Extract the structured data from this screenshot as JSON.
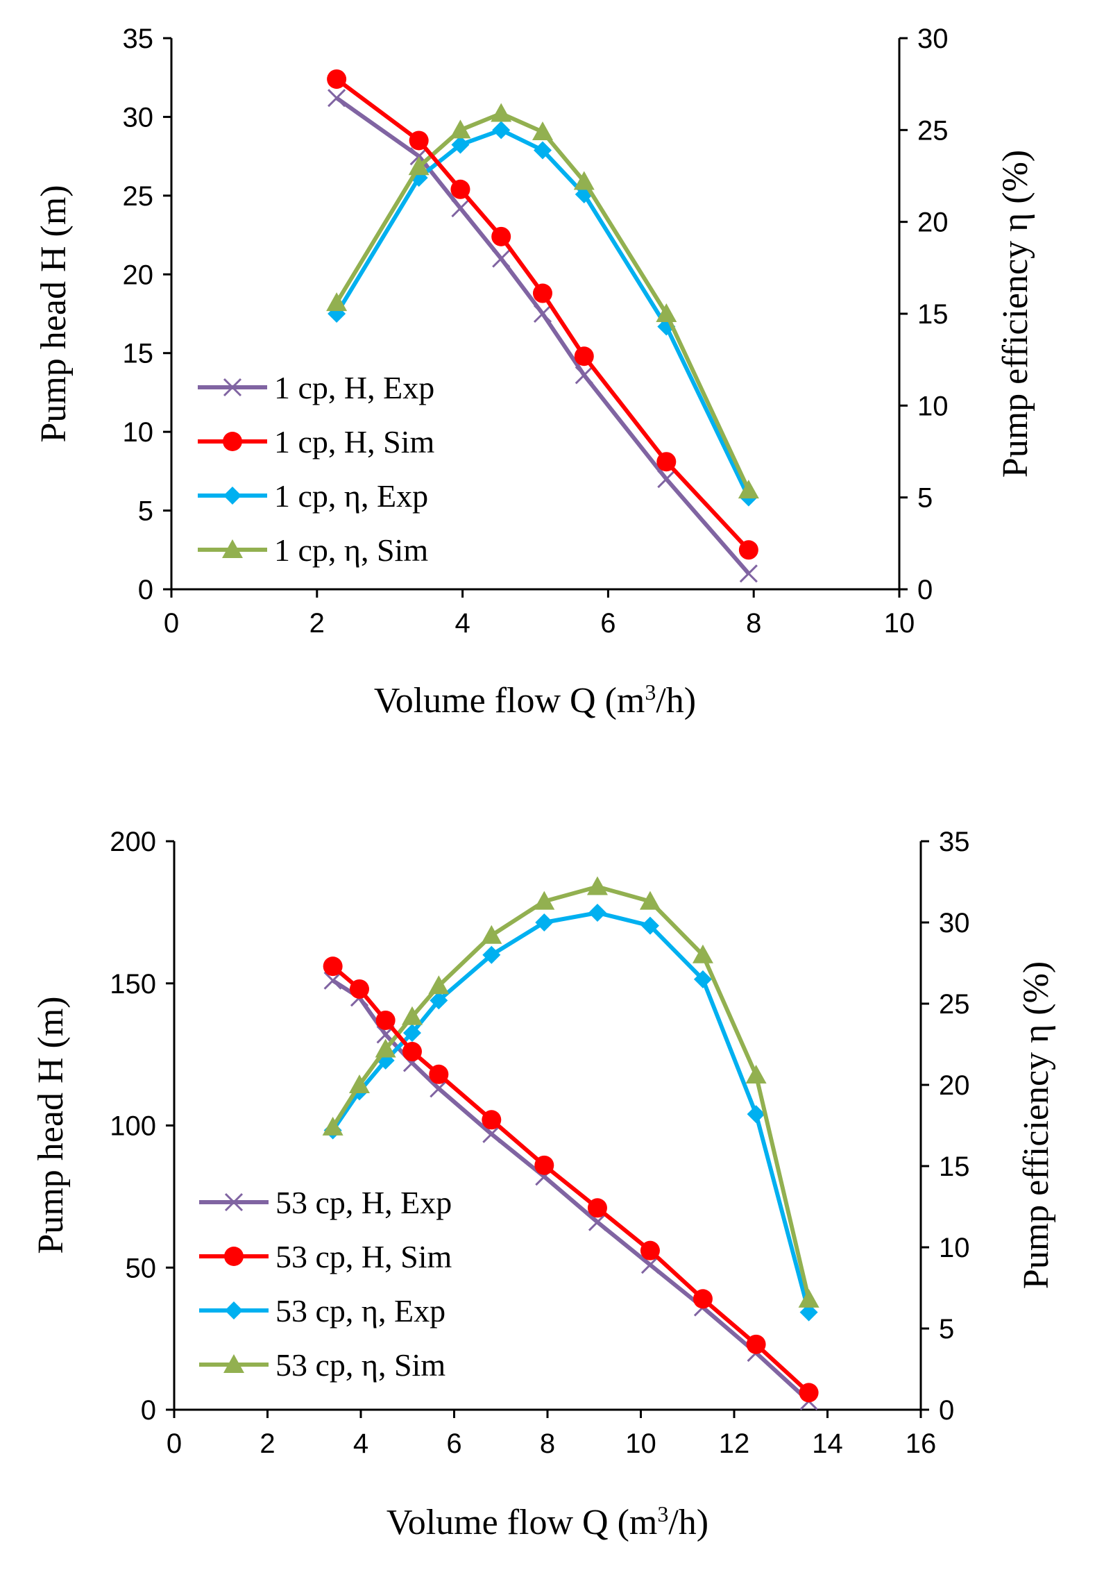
{
  "colors": {
    "h_exp": "#8064a2",
    "h_sim": "#ff0000",
    "eta_exp": "#00b0f0",
    "eta_sim": "#92b050"
  },
  "chart_data": [
    {
      "type": "line",
      "xlabel": "Volume flow Q (m³/h)",
      "xlabel_main": "Volume flow Q (m",
      "xlabel_sup": "3",
      "xlabel_tail": "/h)",
      "ylabel": "Pump head H (m)",
      "y2label": "Pump efficiency η (%)",
      "xlim": [
        0,
        10
      ],
      "ylim": [
        0,
        35
      ],
      "y2lim": [
        0,
        30
      ],
      "xticks": [
        0,
        2,
        4,
        6,
        8,
        10
      ],
      "yticks": [
        0,
        5,
        10,
        15,
        20,
        25,
        30,
        35
      ],
      "y2ticks": [
        0,
        5,
        10,
        15,
        20,
        25,
        30
      ],
      "legend_position": "bottom-left",
      "series": [
        {
          "name": "1 cp, H, Exp",
          "axis": "left",
          "marker": "x",
          "color_key": "h_exp",
          "x": [
            2.27,
            3.4,
            3.97,
            4.53,
            5.1,
            5.67,
            6.8,
            7.93
          ],
          "y": [
            31.2,
            27.5,
            24.2,
            21.0,
            17.5,
            13.6,
            7.0,
            1.0
          ]
        },
        {
          "name": "1 cp, H, Sim",
          "axis": "left",
          "marker": "circle",
          "color_key": "h_sim",
          "x": [
            2.27,
            3.4,
            3.97,
            4.53,
            5.1,
            5.67,
            6.8,
            7.93
          ],
          "y": [
            32.4,
            28.5,
            25.4,
            22.4,
            18.8,
            14.8,
            8.1,
            2.5
          ]
        },
        {
          "name": "1 cp, η, Exp",
          "axis": "right",
          "marker": "diamond",
          "color_key": "eta_exp",
          "x": [
            2.27,
            3.4,
            3.97,
            4.53,
            5.1,
            5.67,
            6.8,
            7.93
          ],
          "y": [
            15.0,
            22.4,
            24.2,
            25.0,
            23.9,
            21.5,
            14.3,
            5.0
          ]
        },
        {
          "name": "1 cp, η, Sim",
          "axis": "right",
          "marker": "triangle",
          "color_key": "eta_sim",
          "x": [
            2.27,
            3.4,
            3.97,
            4.53,
            5.1,
            5.67,
            6.8,
            7.93
          ],
          "y": [
            15.6,
            23.0,
            25.0,
            25.9,
            24.9,
            22.2,
            15.0,
            5.4
          ]
        }
      ]
    },
    {
      "type": "line",
      "xlabel": "Volume flow Q (m³/h)",
      "xlabel_main": "Volume flow Q (m",
      "xlabel_sup": "3",
      "xlabel_tail": "/h)",
      "ylabel": "Pump head H (m)",
      "y2label": "Pump efficiency η (%)",
      "xlim": [
        0,
        16
      ],
      "ylim": [
        0,
        200
      ],
      "y2lim": [
        0,
        35
      ],
      "xticks": [
        0,
        2,
        4,
        6,
        8,
        10,
        12,
        14,
        16
      ],
      "yticks": [
        0,
        50,
        100,
        150,
        200
      ],
      "y2ticks": [
        0,
        5,
        10,
        15,
        20,
        25,
        30,
        35
      ],
      "legend_position": "bottom-left",
      "series": [
        {
          "name": "53 cp, H, Exp",
          "axis": "left",
          "marker": "x",
          "color_key": "h_exp",
          "x": [
            3.4,
            3.97,
            4.53,
            5.1,
            5.67,
            6.8,
            7.93,
            9.07,
            10.2,
            11.33,
            12.47,
            13.6
          ],
          "y": [
            151,
            145,
            132,
            122,
            113,
            97,
            82,
            66,
            51,
            36,
            20,
            3
          ]
        },
        {
          "name": "53 cp, H, Sim",
          "axis": "left",
          "marker": "circle",
          "color_key": "h_sim",
          "x": [
            3.4,
            3.97,
            4.53,
            5.1,
            5.67,
            6.8,
            7.93,
            9.07,
            10.2,
            11.33,
            12.47,
            13.6
          ],
          "y": [
            156,
            148,
            137,
            126,
            118,
            102,
            86,
            71,
            56,
            39,
            23,
            6
          ]
        },
        {
          "name": "53 cp, η, Exp",
          "axis": "right",
          "marker": "diamond",
          "color_key": "eta_exp",
          "x": [
            3.4,
            3.97,
            4.53,
            5.1,
            5.67,
            6.8,
            7.93,
            9.07,
            10.2,
            11.33,
            12.47,
            13.6
          ],
          "y": [
            17.2,
            19.6,
            21.5,
            23.2,
            25.2,
            28.0,
            30.0,
            30.6,
            29.8,
            26.5,
            18.2,
            6.0
          ]
        },
        {
          "name": "53 cp, η, Sim",
          "axis": "right",
          "marker": "triangle",
          "color_key": "eta_sim",
          "x": [
            3.4,
            3.97,
            4.53,
            5.1,
            5.67,
            6.8,
            7.93,
            9.07,
            10.2,
            11.33,
            12.47,
            13.6
          ],
          "y": [
            17.4,
            20.0,
            22.2,
            24.2,
            26.1,
            29.2,
            31.3,
            32.2,
            31.3,
            28.0,
            20.6,
            6.8
          ]
        }
      ]
    }
  ]
}
